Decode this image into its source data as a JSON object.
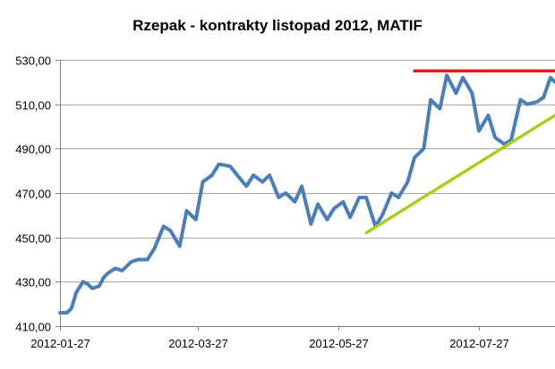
{
  "chart_data": {
    "type": "line",
    "title": "Rzepak - kontrakty listopad 2012, MATIF",
    "xlabel": "",
    "ylabel": "",
    "ylim": [
      410,
      530
    ],
    "xlim": [
      "2012-01-27",
      "2012-08-29"
    ],
    "grid": true,
    "legend": "none",
    "y_ticks": [
      410,
      430,
      450,
      470,
      490,
      510,
      530
    ],
    "y_tick_labels": [
      "410,00",
      "430,00",
      "450,00",
      "470,00",
      "490,00",
      "510,00",
      "530,00"
    ],
    "x_ticks": [
      "2012-01-27",
      "2012-03-27",
      "2012-05-27",
      "2012-07-27"
    ],
    "x_tick_labels": [
      "2012-01-27",
      "2012-03-27",
      "2012-05-27",
      "2012-07-27"
    ],
    "series": [
      {
        "color": "#4a7ebb",
        "x": [
          "2012-01-27",
          "2012-01-30",
          "2012-02-01",
          "2012-02-03",
          "2012-02-06",
          "2012-02-08",
          "2012-02-10",
          "2012-02-13",
          "2012-02-15",
          "2012-02-17",
          "2012-02-20",
          "2012-02-23",
          "2012-02-27",
          "2012-03-01",
          "2012-03-05",
          "2012-03-08",
          "2012-03-12",
          "2012-03-15",
          "2012-03-19",
          "2012-03-22",
          "2012-03-26",
          "2012-03-29",
          "2012-04-02",
          "2012-04-05",
          "2012-04-10",
          "2012-04-13",
          "2012-04-17",
          "2012-04-20",
          "2012-04-24",
          "2012-04-27",
          "2012-05-01",
          "2012-05-04",
          "2012-05-08",
          "2012-05-11",
          "2012-05-15",
          "2012-05-18",
          "2012-05-22",
          "2012-05-25",
          "2012-05-29",
          "2012-06-01",
          "2012-06-05",
          "2012-06-08",
          "2012-06-12",
          "2012-06-15",
          "2012-06-19",
          "2012-06-22",
          "2012-06-26",
          "2012-06-29",
          "2012-07-03",
          "2012-07-06",
          "2012-07-10",
          "2012-07-13",
          "2012-07-17",
          "2012-07-20",
          "2012-07-24",
          "2012-07-27",
          "2012-07-31",
          "2012-08-03",
          "2012-08-07",
          "2012-08-10",
          "2012-08-14",
          "2012-08-17",
          "2012-08-21",
          "2012-08-24",
          "2012-08-27",
          "2012-08-29"
        ],
        "values": [
          416,
          416,
          418,
          425,
          430,
          429,
          427,
          428,
          432,
          434,
          436,
          435,
          439,
          440,
          440,
          445,
          455,
          453,
          446,
          462,
          458,
          475,
          478,
          483,
          482,
          478,
          473,
          478,
          475,
          478,
          468,
          470,
          466,
          473,
          456,
          465,
          458,
          463,
          466,
          459,
          468,
          468,
          455,
          460,
          470,
          468,
          475,
          486,
          490,
          512,
          508,
          523,
          515,
          522,
          515,
          498,
          505,
          495,
          492,
          494,
          512,
          510,
          511,
          513,
          522,
          520
        ]
      },
      {
        "color": "#e31a1c",
        "x": [
          "2012-06-29",
          "2012-08-29"
        ],
        "values": [
          525,
          525
        ]
      },
      {
        "color": "#a6d11a",
        "x": [
          "2012-06-08",
          "2012-08-29"
        ],
        "values": [
          452,
          505
        ]
      }
    ]
  }
}
